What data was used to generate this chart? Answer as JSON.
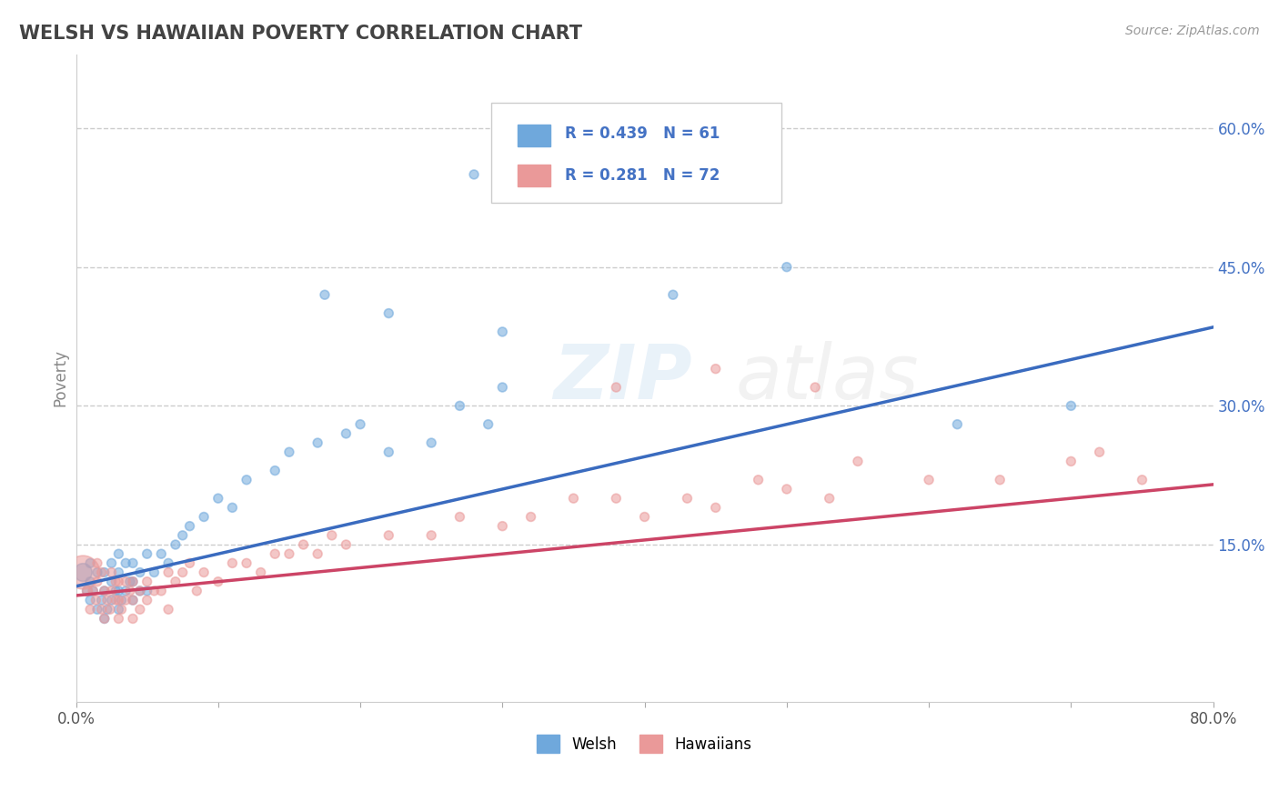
{
  "title": "WELSH VS HAWAIIAN POVERTY CORRELATION CHART",
  "source": "Source: ZipAtlas.com",
  "ylabel": "Poverty",
  "xlim": [
    0.0,
    0.8
  ],
  "ylim": [
    -0.02,
    0.68
  ],
  "yticks": [
    0.15,
    0.3,
    0.45,
    0.6
  ],
  "ytick_labels": [
    "15.0%",
    "30.0%",
    "45.0%",
    "60.0%"
  ],
  "xticks": [
    0.0,
    0.1,
    0.2,
    0.3,
    0.4,
    0.5,
    0.6,
    0.7,
    0.8
  ],
  "xtick_labels": [
    "0.0%",
    "",
    "",
    "",
    "",
    "",
    "",
    "",
    "80.0%"
  ],
  "welsh_R": 0.439,
  "welsh_N": 61,
  "hawaiian_R": 0.281,
  "hawaiian_N": 72,
  "welsh_color": "#6fa8dc",
  "hawaiian_color": "#ea9999",
  "trend_welsh_color": "#3a6bbf",
  "trend_hawaiian_color": "#cc4466",
  "title_color": "#434343",
  "legend_text_color": "#4472c4",
  "background_color": "#ffffff",
  "welsh_scatter_x": [
    0.005,
    0.008,
    0.01,
    0.01,
    0.01,
    0.012,
    0.015,
    0.015,
    0.018,
    0.02,
    0.02,
    0.02,
    0.022,
    0.025,
    0.025,
    0.025,
    0.028,
    0.03,
    0.03,
    0.03,
    0.03,
    0.032,
    0.035,
    0.035,
    0.038,
    0.04,
    0.04,
    0.04,
    0.045,
    0.045,
    0.05,
    0.05,
    0.055,
    0.06,
    0.065,
    0.07,
    0.075,
    0.08,
    0.09,
    0.1,
    0.11,
    0.12,
    0.14,
    0.15,
    0.17,
    0.19,
    0.2,
    0.22,
    0.25,
    0.27,
    0.29,
    0.3,
    0.175,
    0.22,
    0.3,
    0.42,
    0.5,
    0.28,
    0.32,
    0.7,
    0.62
  ],
  "welsh_scatter_y": [
    0.12,
    0.1,
    0.09,
    0.11,
    0.13,
    0.1,
    0.08,
    0.12,
    0.09,
    0.07,
    0.1,
    0.12,
    0.08,
    0.09,
    0.11,
    0.13,
    0.1,
    0.08,
    0.1,
    0.12,
    0.14,
    0.09,
    0.1,
    0.13,
    0.11,
    0.09,
    0.11,
    0.13,
    0.1,
    0.12,
    0.1,
    0.14,
    0.12,
    0.14,
    0.13,
    0.15,
    0.16,
    0.17,
    0.18,
    0.2,
    0.19,
    0.22,
    0.23,
    0.25,
    0.26,
    0.27,
    0.28,
    0.25,
    0.26,
    0.3,
    0.28,
    0.32,
    0.42,
    0.4,
    0.38,
    0.42,
    0.45,
    0.55,
    0.62,
    0.3,
    0.28
  ],
  "welsh_scatter_size_factor": [
    200,
    60,
    50,
    50,
    50,
    50,
    50,
    50,
    50,
    50,
    50,
    50,
    50,
    50,
    50,
    50,
    50,
    50,
    50,
    50,
    50,
    50,
    50,
    50,
    50,
    50,
    50,
    50,
    50,
    50,
    50,
    50,
    50,
    50,
    50,
    50,
    50,
    50,
    50,
    50,
    50,
    50,
    50,
    50,
    50,
    50,
    50,
    50,
    50,
    50,
    50,
    50,
    50,
    50,
    50,
    50,
    50,
    50,
    50,
    50,
    50
  ],
  "hawaiian_scatter_x": [
    0.005,
    0.008,
    0.01,
    0.012,
    0.014,
    0.015,
    0.015,
    0.018,
    0.018,
    0.02,
    0.02,
    0.022,
    0.024,
    0.025,
    0.025,
    0.028,
    0.028,
    0.03,
    0.03,
    0.03,
    0.032,
    0.035,
    0.035,
    0.038,
    0.04,
    0.04,
    0.04,
    0.045,
    0.045,
    0.05,
    0.05,
    0.055,
    0.06,
    0.065,
    0.065,
    0.07,
    0.075,
    0.08,
    0.085,
    0.09,
    0.1,
    0.11,
    0.12,
    0.13,
    0.14,
    0.15,
    0.16,
    0.17,
    0.18,
    0.19,
    0.22,
    0.25,
    0.27,
    0.3,
    0.32,
    0.35,
    0.38,
    0.4,
    0.43,
    0.45,
    0.48,
    0.5,
    0.53,
    0.55,
    0.6,
    0.65,
    0.7,
    0.72,
    0.75,
    0.38,
    0.45,
    0.52
  ],
  "hawaiian_scatter_y": [
    0.12,
    0.1,
    0.08,
    0.1,
    0.09,
    0.11,
    0.13,
    0.08,
    0.12,
    0.07,
    0.1,
    0.09,
    0.08,
    0.1,
    0.12,
    0.09,
    0.11,
    0.07,
    0.09,
    0.11,
    0.08,
    0.09,
    0.11,
    0.1,
    0.07,
    0.09,
    0.11,
    0.08,
    0.1,
    0.09,
    0.11,
    0.1,
    0.1,
    0.12,
    0.08,
    0.11,
    0.12,
    0.13,
    0.1,
    0.12,
    0.11,
    0.13,
    0.13,
    0.12,
    0.14,
    0.14,
    0.15,
    0.14,
    0.16,
    0.15,
    0.16,
    0.16,
    0.18,
    0.17,
    0.18,
    0.2,
    0.2,
    0.18,
    0.2,
    0.19,
    0.22,
    0.21,
    0.2,
    0.24,
    0.22,
    0.22,
    0.24,
    0.25,
    0.22,
    0.32,
    0.34,
    0.32
  ],
  "hawaiian_scatter_size_factor": [
    700,
    60,
    50,
    50,
    50,
    50,
    50,
    50,
    50,
    50,
    50,
    50,
    50,
    50,
    50,
    50,
    50,
    50,
    50,
    50,
    50,
    50,
    50,
    50,
    50,
    50,
    50,
    50,
    50,
    50,
    50,
    50,
    50,
    50,
    50,
    50,
    50,
    50,
    50,
    50,
    50,
    50,
    50,
    50,
    50,
    50,
    50,
    50,
    50,
    50,
    50,
    50,
    50,
    50,
    50,
    50,
    50,
    50,
    50,
    50,
    50,
    50,
    50,
    50,
    50,
    50,
    50,
    50,
    50,
    50,
    50,
    50
  ],
  "welsh_trend_x0": 0.0,
  "welsh_trend_y0": 0.105,
  "welsh_trend_x1": 0.8,
  "welsh_trend_y1": 0.385,
  "hawaiian_trend_x0": 0.0,
  "hawaiian_trend_y0": 0.095,
  "hawaiian_trend_x1": 0.8,
  "hawaiian_trend_y1": 0.215
}
